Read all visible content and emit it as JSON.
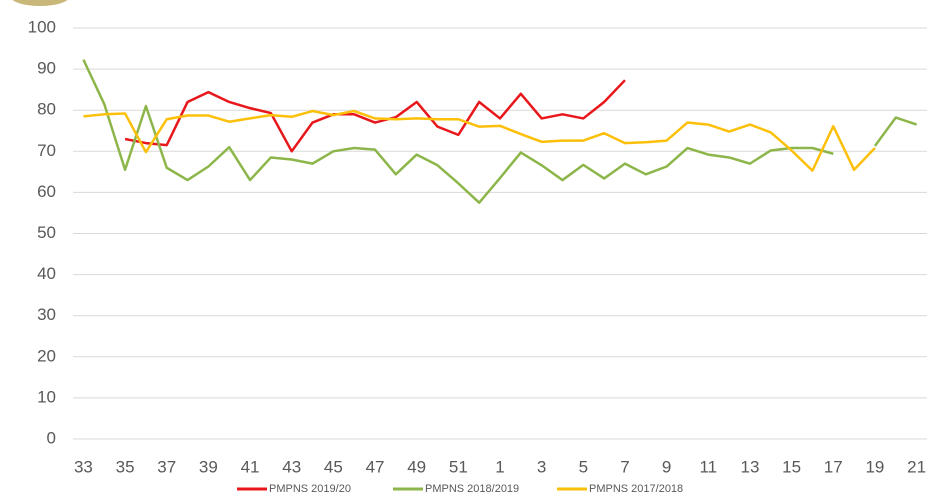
{
  "chart_data": {
    "type": "line",
    "categories": [
      "33",
      null,
      "35",
      null,
      "37",
      null,
      "39",
      null,
      "41",
      null,
      "43",
      null,
      "45",
      null,
      "47",
      null,
      "49",
      null,
      "51",
      null,
      "1",
      null,
      "3",
      null,
      "5",
      null,
      "7",
      null,
      "9",
      null,
      "11",
      null,
      "13",
      null,
      "15",
      null,
      "17",
      null,
      "19",
      null,
      "21"
    ],
    "series": [
      {
        "name": "PMPNS 2019/20",
        "color": "#e8171b",
        "values": [
          null,
          null,
          73,
          72,
          71.5,
          82,
          84.4,
          82,
          80.5,
          79.3,
          70,
          77,
          79,
          79,
          77,
          78.3,
          82,
          76,
          74,
          82,
          78,
          84,
          78,
          79,
          78,
          82,
          87.3,
          null,
          null,
          null,
          null,
          null,
          null,
          null,
          null,
          null,
          null,
          null,
          null,
          null,
          null
        ]
      },
      {
        "name": "PMPNS 2018/2019",
        "color": "#8db64a",
        "values": [
          92.3,
          81.5,
          65.5,
          81,
          66,
          63,
          66.3,
          71,
          63,
          68.5,
          68,
          67,
          70,
          70.8,
          70.4,
          64.4,
          69.2,
          66.6,
          62.2,
          57.5,
          63.5,
          69.7,
          66.6,
          63,
          66.7,
          63.4,
          67,
          64.4,
          66.3,
          70.8,
          69.2,
          68.5,
          67,
          70.2,
          70.8,
          70.8,
          69.4,
          null,
          71.3,
          78.2,
          76.5
        ]
      },
      {
        "name": "PMPNS 2017/2018",
        "color": "#fcc00a",
        "values": [
          78.5,
          79,
          79.2,
          69.8,
          77.8,
          78.7,
          78.7,
          77.2,
          78,
          78.8,
          78.4,
          79.8,
          78.8,
          79.8,
          78,
          77.8,
          78,
          77.8,
          77.8,
          76,
          76.2,
          74.2,
          72.3,
          72.6,
          72.6,
          74.4,
          72,
          72.2,
          72.6,
          77,
          76.5,
          74.8,
          76.5,
          74.6,
          70.2,
          65.3,
          76.1,
          65.5,
          70.8,
          null,
          null
        ]
      }
    ],
    "ylim": [
      0,
      100
    ],
    "yticks": [
      0,
      10,
      20,
      30,
      40,
      50,
      60,
      70,
      80,
      90,
      100
    ],
    "grid": true,
    "legend": "bottom"
  }
}
